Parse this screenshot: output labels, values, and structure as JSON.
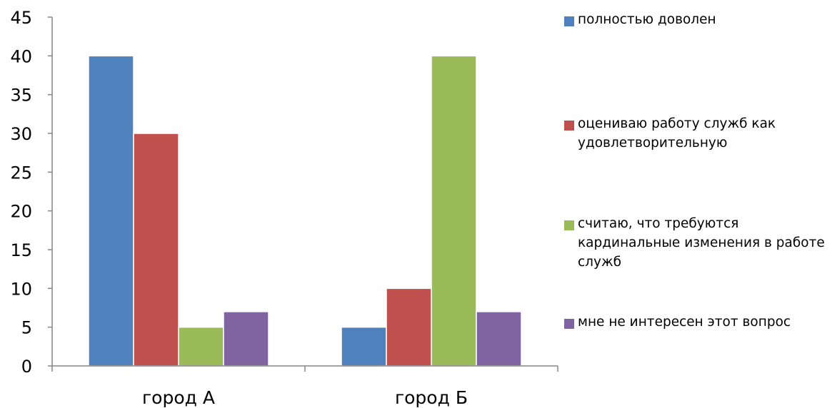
{
  "chart_data": {
    "type": "bar",
    "title": "",
    "xlabel": "",
    "ylabel": "",
    "ylim": [
      0,
      45
    ],
    "yticks": [
      0,
      5,
      10,
      15,
      20,
      25,
      30,
      35,
      40,
      45
    ],
    "grid": false,
    "legend_position": "right",
    "categories": [
      "город А",
      "город Б"
    ],
    "series": [
      {
        "name": "полностью доволен",
        "color": "#4f81bd",
        "values": [
          40,
          5
        ]
      },
      {
        "name": "оцениваю работу служб как удовлетворительную",
        "color": "#c0504d",
        "values": [
          30,
          10
        ]
      },
      {
        "name": "считаю, что требуются кардинальные изменения в работе служб",
        "color": "#9bbb59",
        "values": [
          5,
          40
        ]
      },
      {
        "name": "мне не интересен этот вопрос",
        "color": "#8064a2",
        "values": [
          7,
          7
        ]
      }
    ]
  }
}
